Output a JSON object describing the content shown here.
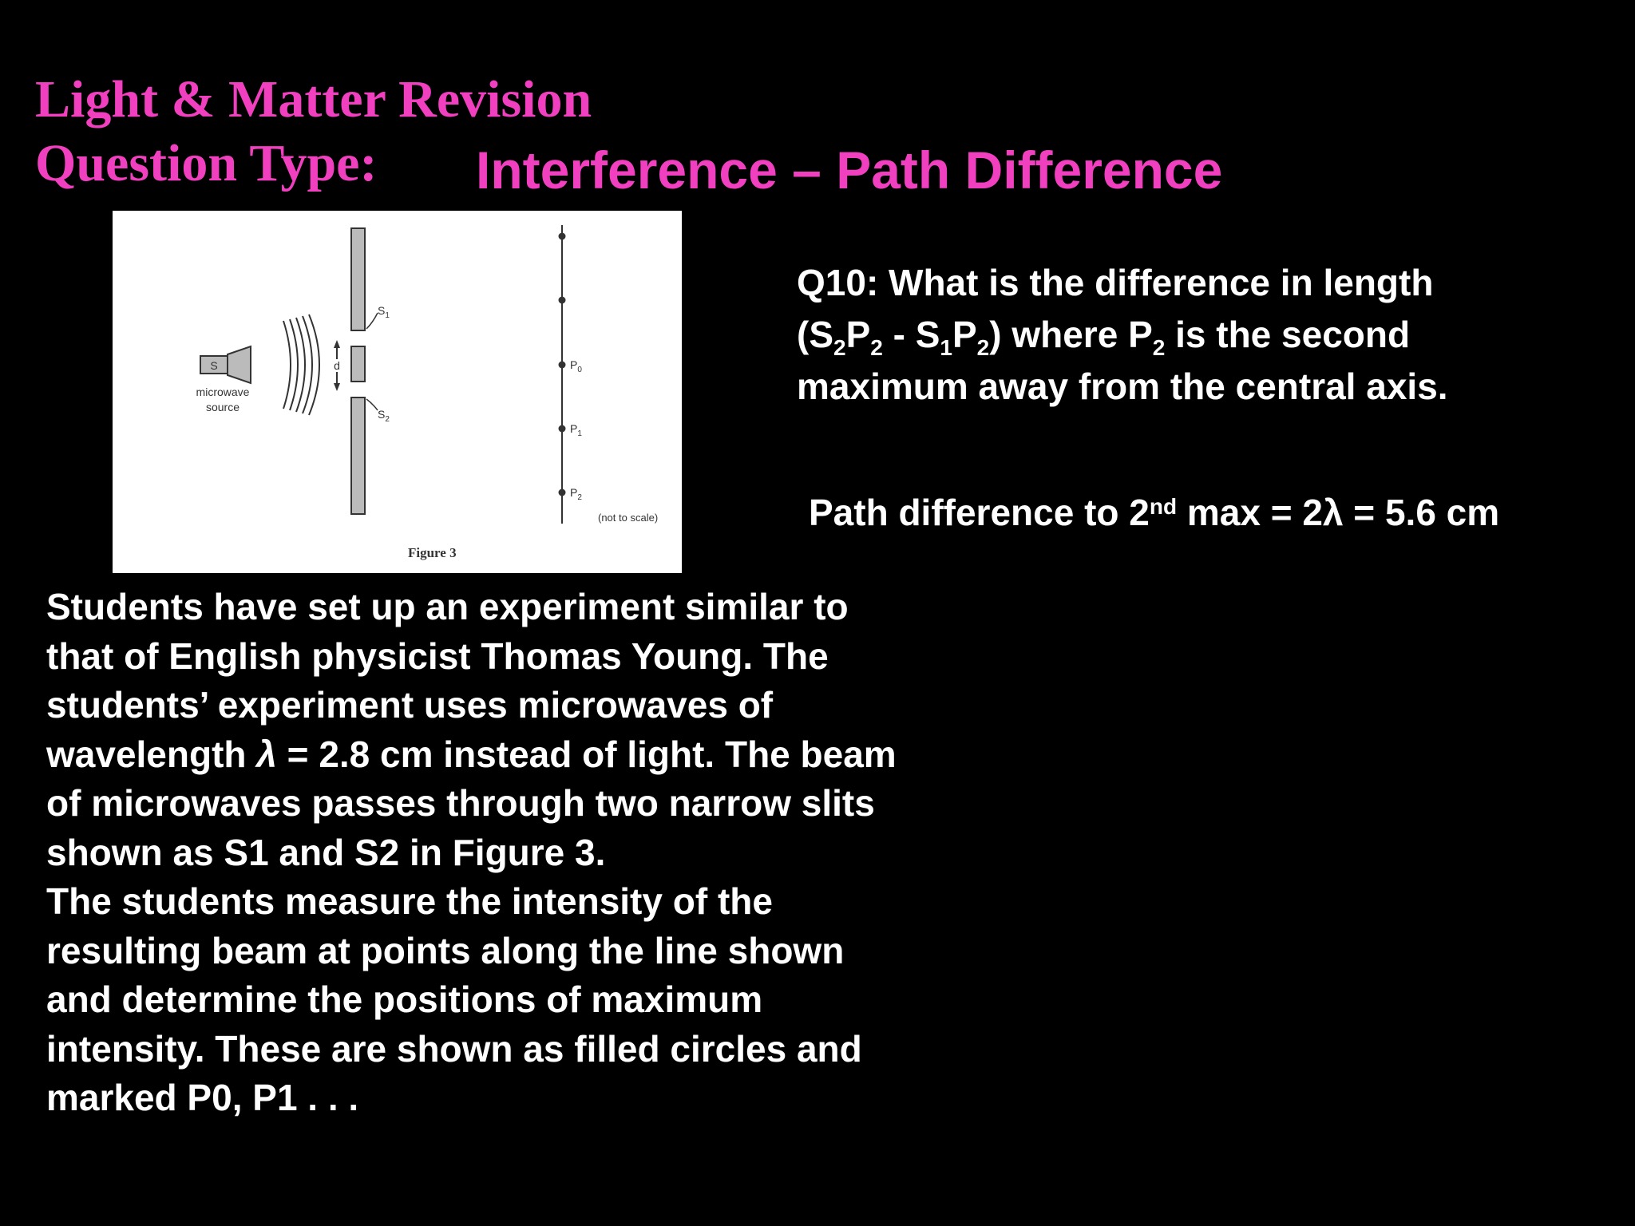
{
  "header": {
    "title_line1": "Light & Matter Revision",
    "title_line2": "Question Type:",
    "subtitle": "Interference – Path Difference"
  },
  "figure": {
    "source_box_label": "S",
    "source_label_line1": "microwave",
    "source_label_line2": "source",
    "gap_label": "d",
    "slit1_label": "S",
    "slit1_sub": "1",
    "slit2_label": "S",
    "slit2_sub": "2",
    "point_labels": [
      "P",
      "P",
      "P"
    ],
    "point_subs": [
      "0",
      "1",
      "2"
    ],
    "scale_note": "(not to scale)",
    "caption": "Figure 3"
  },
  "question": {
    "line1": "Q10: What is the difference in length",
    "l2_a": "(S",
    "l2_b": "2",
    "l2_c": "P",
    "l2_d": "2",
    "l2_e": " - S",
    "l2_f": "1",
    "l2_g": "P",
    "l2_h": "2",
    "l2_i": ") where P",
    "l2_j": "2",
    "l2_k": " is the second",
    "line3": "maximum away from the central axis."
  },
  "answer": {
    "prefix": "Path difference to 2",
    "sup": "nd",
    "suffix": " max = 2λ = 5.6 cm"
  },
  "body": {
    "p1_a": "Students have set up an experiment similar to that of English physicist Thomas Young. The students’ experiment uses microwaves of wavelength ",
    "p1_lambda": "λ",
    "p1_b": " = 2.8 cm instead of light. The beam of microwaves passes through two narrow slits shown as S1 and S2 in Figure 3.",
    "p2": "The students measure the intensity of the resulting beam at points along the line shown and determine the positions of maximum intensity. These are shown as filled circles and marked P0, P1 . . ."
  }
}
